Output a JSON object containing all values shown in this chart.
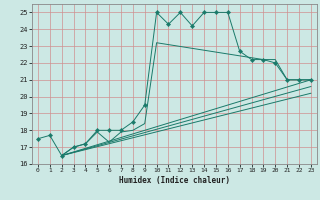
{
  "xlabel": "Humidex (Indice chaleur)",
  "xlim": [
    -0.5,
    23.5
  ],
  "ylim": [
    16,
    25.5
  ],
  "xticks": [
    0,
    1,
    2,
    3,
    4,
    5,
    6,
    7,
    8,
    9,
    10,
    11,
    12,
    13,
    14,
    15,
    16,
    17,
    18,
    19,
    20,
    21,
    22,
    23
  ],
  "yticks": [
    16,
    17,
    18,
    19,
    20,
    21,
    22,
    23,
    24,
    25
  ],
  "bg_color": "#cce8e4",
  "grid_color_v": "#d09090",
  "grid_color_h": "#d09090",
  "line_color": "#1a7a6a",
  "s1_x": [
    0,
    1,
    2,
    3,
    4,
    5,
    6,
    7,
    8,
    9,
    10,
    11,
    12,
    13,
    14,
    15,
    16,
    17,
    18,
    19,
    20,
    21,
    22,
    23
  ],
  "s1_y": [
    17.5,
    17.7,
    16.5,
    17.0,
    17.2,
    18.0,
    18.0,
    18.0,
    18.5,
    19.5,
    25.0,
    24.3,
    25.0,
    24.2,
    25.0,
    25.0,
    25.0,
    22.7,
    22.2,
    22.2,
    22.0,
    21.0,
    21.0,
    21.0
  ],
  "s2_x": [
    2,
    3,
    4,
    5,
    6,
    7,
    8,
    9,
    10,
    19,
    20,
    21,
    22,
    23
  ],
  "s2_y": [
    16.5,
    17.0,
    17.2,
    17.9,
    17.3,
    17.9,
    18.0,
    18.4,
    23.2,
    22.2,
    22.2,
    21.0,
    21.0,
    21.0
  ],
  "straight_lines": [
    {
      "x": [
        2,
        23
      ],
      "y": [
        16.5,
        21.0
      ]
    },
    {
      "x": [
        2,
        23
      ],
      "y": [
        16.5,
        20.6
      ]
    },
    {
      "x": [
        2,
        23
      ],
      "y": [
        16.5,
        20.2
      ]
    }
  ]
}
